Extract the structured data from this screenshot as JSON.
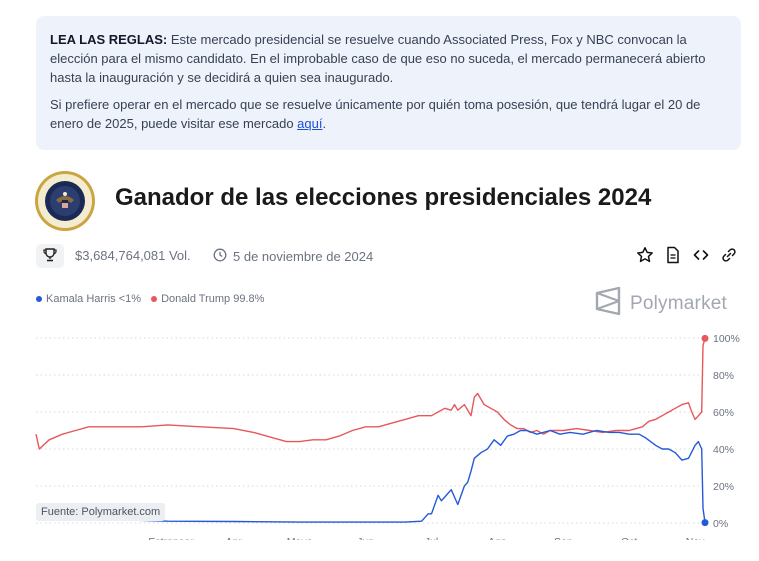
{
  "rules": {
    "heading": "LEA LAS REGLAS:",
    "p1": " Este mercado presidencial se resuelve cuando Associated Press, Fox y NBC convocan la elección para el mismo candidato. En el improbable caso de que eso no suceda, el mercado permanecerá abierto hasta la inauguración y se decidirá a quien sea inaugurado.",
    "p2_before": "Si prefiere operar en el mercado que se resuelve únicamente por quién toma posesión, que tendrá lugar el 20 de enero de 2025, puede visitar ese mercado ",
    "link": "aquí",
    "p2_after": "."
  },
  "market": {
    "title": "Ganador de las elecciones presidenciales 2024",
    "volume": "$3,684,764,081 Vol.",
    "date": "5 de noviembre de 2024"
  },
  "brand": {
    "name": "Polymarket"
  },
  "legend": {
    "harris": "Kamala Harris <1%",
    "trump": "Donald Trump 99.8%"
  },
  "source_label": "Fuente: Polymarket.com",
  "icons": {
    "trophy": "trophy-icon",
    "clock": "clock-icon",
    "star": "star-icon",
    "document": "document-icon",
    "code": "code-icon",
    "link": "link-icon"
  },
  "chart_data": {
    "type": "line",
    "x_tick_labels": [
      "Estropear",
      "Apr",
      "Mayo",
      "Jun",
      "Jul",
      "Ago",
      "Sep",
      "Oct",
      "Nov"
    ],
    "x_tick_positions": [
      2.05,
      3.0,
      4.0,
      5.0,
      6.0,
      7.0,
      8.0,
      9.0,
      10.0
    ],
    "ylim": [
      0,
      100
    ],
    "y_ticks": [
      0,
      20,
      40,
      60,
      80,
      100
    ],
    "y_tick_labels": [
      "0%",
      "20%",
      "40%",
      "60%",
      "80%",
      "100%"
    ],
    "grid": true,
    "series": [
      {
        "name": "Kamala Harris",
        "color": "#2459d8",
        "points": [
          [
            0.0,
            4
          ],
          [
            0.5,
            3
          ],
          [
            1.0,
            2
          ],
          [
            1.5,
            1.5
          ],
          [
            2.0,
            1
          ],
          [
            3.0,
            0.8
          ],
          [
            4.0,
            0.5
          ],
          [
            5.0,
            0.5
          ],
          [
            5.6,
            0.5
          ],
          [
            5.85,
            1
          ],
          [
            5.95,
            5
          ],
          [
            6.0,
            5
          ],
          [
            6.1,
            15
          ],
          [
            6.15,
            12
          ],
          [
            6.2,
            14
          ],
          [
            6.3,
            18
          ],
          [
            6.4,
            10
          ],
          [
            6.5,
            20
          ],
          [
            6.55,
            22
          ],
          [
            6.6,
            28
          ],
          [
            6.65,
            35
          ],
          [
            6.75,
            38
          ],
          [
            6.85,
            40
          ],
          [
            6.95,
            45
          ],
          [
            7.05,
            42
          ],
          [
            7.15,
            47
          ],
          [
            7.25,
            48
          ],
          [
            7.35,
            50
          ],
          [
            7.45,
            50
          ],
          [
            7.6,
            48
          ],
          [
            7.8,
            50
          ],
          [
            7.95,
            48
          ],
          [
            8.1,
            49
          ],
          [
            8.3,
            48
          ],
          [
            8.5,
            50
          ],
          [
            8.7,
            49
          ],
          [
            8.85,
            49
          ],
          [
            9.0,
            48
          ],
          [
            9.15,
            48
          ],
          [
            9.25,
            46
          ],
          [
            9.4,
            42
          ],
          [
            9.5,
            40
          ],
          [
            9.6,
            40
          ],
          [
            9.7,
            38
          ],
          [
            9.8,
            34
          ],
          [
            9.9,
            35
          ],
          [
            10.0,
            42
          ],
          [
            10.05,
            44
          ],
          [
            10.1,
            40
          ],
          [
            10.12,
            8
          ],
          [
            10.15,
            0.2
          ]
        ]
      },
      {
        "name": "Donald Trump",
        "color": "#e8575b",
        "points": [
          [
            0.0,
            48
          ],
          [
            0.05,
            40
          ],
          [
            0.2,
            45
          ],
          [
            0.4,
            48
          ],
          [
            0.6,
            50
          ],
          [
            0.8,
            52
          ],
          [
            1.0,
            52
          ],
          [
            1.3,
            52
          ],
          [
            1.6,
            52
          ],
          [
            2.0,
            53
          ],
          [
            2.5,
            52
          ],
          [
            3.0,
            51
          ],
          [
            3.3,
            49
          ],
          [
            3.6,
            46
          ],
          [
            3.8,
            44
          ],
          [
            4.0,
            44
          ],
          [
            4.2,
            45
          ],
          [
            4.4,
            45
          ],
          [
            4.6,
            47
          ],
          [
            4.8,
            50
          ],
          [
            5.0,
            52
          ],
          [
            5.2,
            52
          ],
          [
            5.4,
            54
          ],
          [
            5.6,
            56
          ],
          [
            5.8,
            58
          ],
          [
            6.0,
            58
          ],
          [
            6.1,
            60
          ],
          [
            6.2,
            62
          ],
          [
            6.3,
            61
          ],
          [
            6.35,
            64
          ],
          [
            6.4,
            61
          ],
          [
            6.5,
            64
          ],
          [
            6.6,
            58
          ],
          [
            6.65,
            68
          ],
          [
            6.7,
            70
          ],
          [
            6.8,
            64
          ],
          [
            6.9,
            62
          ],
          [
            7.0,
            60
          ],
          [
            7.1,
            56
          ],
          [
            7.2,
            53
          ],
          [
            7.3,
            51
          ],
          [
            7.4,
            51
          ],
          [
            7.5,
            49
          ],
          [
            7.6,
            50
          ],
          [
            7.7,
            48
          ],
          [
            7.8,
            50
          ],
          [
            8.0,
            50
          ],
          [
            8.2,
            51
          ],
          [
            8.4,
            50
          ],
          [
            8.6,
            49
          ],
          [
            8.8,
            50
          ],
          [
            9.0,
            50
          ],
          [
            9.2,
            52
          ],
          [
            9.3,
            55
          ],
          [
            9.4,
            56
          ],
          [
            9.5,
            58
          ],
          [
            9.6,
            60
          ],
          [
            9.7,
            62
          ],
          [
            9.8,
            64
          ],
          [
            9.9,
            65
          ],
          [
            9.95,
            60
          ],
          [
            10.0,
            56
          ],
          [
            10.05,
            58
          ],
          [
            10.1,
            60
          ],
          [
            10.12,
            96
          ],
          [
            10.15,
            99.8
          ]
        ]
      }
    ]
  }
}
